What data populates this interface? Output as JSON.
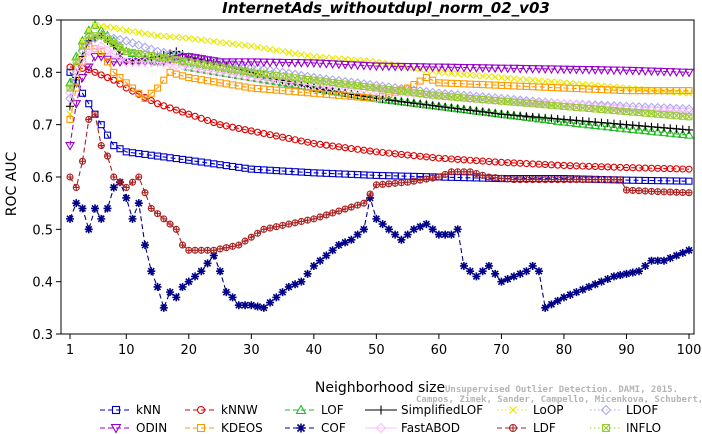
{
  "chart_data": {
    "type": "line",
    "title": "InternetAds_withoutdupl_norm_02_v03",
    "xlabel": "Neighborhood size",
    "ylabel": "ROC AUC",
    "xlim": [
      0,
      100
    ],
    "ylim": [
      0.3,
      0.9
    ],
    "x_ticks": [
      1,
      10,
      20,
      30,
      40,
      50,
      60,
      70,
      80,
      90,
      100
    ],
    "y_ticks": [
      0.3,
      0.4,
      0.5,
      0.6,
      0.7,
      0.8,
      0.9
    ],
    "grid": false,
    "legend_position": "bottom",
    "watermark": [
      "Unsupervised Outlier Detection. DAMI, 2015.",
      "Campos, Zimek, Sander, Campello, Micenkova, Schubert, Assent, Houle"
    ],
    "series": [
      {
        "name": "kNN",
        "color": "#0000cc",
        "marker": "square",
        "dash": "dashed",
        "points": [
          [
            1,
            0.8
          ],
          [
            2,
            0.78
          ],
          [
            3,
            0.76
          ],
          [
            4,
            0.74
          ],
          [
            5,
            0.72
          ],
          [
            6,
            0.7
          ],
          [
            7,
            0.68
          ],
          [
            8,
            0.66
          ],
          [
            10,
            0.648
          ],
          [
            15,
            0.64
          ],
          [
            20,
            0.632
          ],
          [
            30,
            0.615
          ],
          [
            40,
            0.608
          ],
          [
            50,
            0.603
          ],
          [
            60,
            0.6
          ],
          [
            70,
            0.597
          ],
          [
            80,
            0.597
          ],
          [
            90,
            0.594
          ],
          [
            100,
            0.592
          ]
        ]
      },
      {
        "name": "kNNW",
        "color": "#dd0000",
        "marker": "circle",
        "dash": "dashed",
        "points": [
          [
            1,
            0.81
          ],
          [
            2,
            0.81
          ],
          [
            4,
            0.805
          ],
          [
            6,
            0.795
          ],
          [
            8,
            0.785
          ],
          [
            10,
            0.77
          ],
          [
            15,
            0.74
          ],
          [
            20,
            0.72
          ],
          [
            25,
            0.7
          ],
          [
            30,
            0.688
          ],
          [
            40,
            0.664
          ],
          [
            50,
            0.648
          ],
          [
            60,
            0.636
          ],
          [
            70,
            0.628
          ],
          [
            80,
            0.622
          ],
          [
            90,
            0.618
          ],
          [
            100,
            0.615
          ]
        ]
      },
      {
        "name": "LOF",
        "color": "#22bb22",
        "marker": "triangle-up",
        "dash": "dashed",
        "points": [
          [
            1,
            0.78
          ],
          [
            2,
            0.83
          ],
          [
            3,
            0.86
          ],
          [
            4,
            0.88
          ],
          [
            5,
            0.89
          ],
          [
            6,
            0.88
          ],
          [
            8,
            0.86
          ],
          [
            10,
            0.84
          ],
          [
            15,
            0.82
          ],
          [
            18,
            0.83
          ],
          [
            20,
            0.81
          ],
          [
            30,
            0.79
          ],
          [
            40,
            0.77
          ],
          [
            50,
            0.75
          ],
          [
            60,
            0.735
          ],
          [
            70,
            0.72
          ],
          [
            80,
            0.705
          ],
          [
            90,
            0.692
          ],
          [
            100,
            0.68
          ]
        ]
      },
      {
        "name": "SimplifiedLOF",
        "color": "#000000",
        "marker": "plus",
        "dash": "solid",
        "points": [
          [
            1,
            0.735
          ],
          [
            2,
            0.79
          ],
          [
            3,
            0.83
          ],
          [
            4,
            0.86
          ],
          [
            5,
            0.865
          ],
          [
            6,
            0.87
          ],
          [
            7,
            0.86
          ],
          [
            8,
            0.85
          ],
          [
            10,
            0.82
          ],
          [
            15,
            0.83
          ],
          [
            18,
            0.84
          ],
          [
            20,
            0.83
          ],
          [
            30,
            0.8
          ],
          [
            40,
            0.77
          ],
          [
            50,
            0.75
          ],
          [
            60,
            0.735
          ],
          [
            70,
            0.72
          ],
          [
            80,
            0.71
          ],
          [
            90,
            0.7
          ],
          [
            100,
            0.69
          ]
        ]
      },
      {
        "name": "LoOP",
        "color": "#e8e800",
        "marker": "x",
        "dash": "dotted",
        "points": [
          [
            1,
            0.72
          ],
          [
            2,
            0.82
          ],
          [
            3,
            0.86
          ],
          [
            4,
            0.88
          ],
          [
            5,
            0.89
          ],
          [
            8,
            0.885
          ],
          [
            10,
            0.88
          ],
          [
            15,
            0.87
          ],
          [
            20,
            0.865
          ],
          [
            30,
            0.85
          ],
          [
            40,
            0.83
          ],
          [
            50,
            0.82
          ],
          [
            60,
            0.8
          ],
          [
            70,
            0.79
          ],
          [
            80,
            0.78
          ],
          [
            90,
            0.77
          ],
          [
            100,
            0.76
          ]
        ]
      },
      {
        "name": "LDOF",
        "color": "#aaaaee",
        "marker": "diamond",
        "dash": "dotted",
        "points": [
          [
            1,
            0.75
          ],
          [
            2,
            0.8
          ],
          [
            3,
            0.84
          ],
          [
            4,
            0.86
          ],
          [
            6,
            0.87
          ],
          [
            10,
            0.86
          ],
          [
            15,
            0.84
          ],
          [
            20,
            0.83
          ],
          [
            30,
            0.81
          ],
          [
            40,
            0.79
          ],
          [
            50,
            0.775
          ],
          [
            60,
            0.76
          ],
          [
            70,
            0.75
          ],
          [
            80,
            0.74
          ],
          [
            90,
            0.735
          ],
          [
            100,
            0.73
          ]
        ]
      },
      {
        "name": "ODIN",
        "color": "#9900cc",
        "marker": "triangle-down",
        "dash": "dashed",
        "points": [
          [
            1,
            0.66
          ],
          [
            2,
            0.74
          ],
          [
            3,
            0.79
          ],
          [
            4,
            0.81
          ],
          [
            5,
            0.83
          ],
          [
            6,
            0.83
          ],
          [
            8,
            0.82
          ],
          [
            10,
            0.82
          ],
          [
            15,
            0.82
          ],
          [
            20,
            0.83
          ],
          [
            25,
            0.82
          ],
          [
            30,
            0.82
          ],
          [
            40,
            0.818
          ],
          [
            50,
            0.812
          ],
          [
            60,
            0.81
          ],
          [
            70,
            0.808
          ],
          [
            80,
            0.806
          ],
          [
            90,
            0.804
          ],
          [
            100,
            0.8
          ]
        ]
      },
      {
        "name": "KDEOS",
        "color": "#ff9900",
        "marker": "square",
        "dash": "dashed",
        "points": [
          [
            1,
            0.71
          ],
          [
            2,
            0.77
          ],
          [
            3,
            0.82
          ],
          [
            4,
            0.85
          ],
          [
            6,
            0.84
          ],
          [
            8,
            0.8
          ],
          [
            10,
            0.78
          ],
          [
            12,
            0.76
          ],
          [
            13,
            0.75
          ],
          [
            15,
            0.77
          ],
          [
            17,
            0.8
          ],
          [
            20,
            0.79
          ],
          [
            25,
            0.78
          ],
          [
            30,
            0.77
          ],
          [
            40,
            0.76
          ],
          [
            50,
            0.75
          ],
          [
            55,
            0.77
          ],
          [
            58,
            0.79
          ],
          [
            60,
            0.78
          ],
          [
            70,
            0.775
          ],
          [
            80,
            0.77
          ],
          [
            90,
            0.765
          ],
          [
            100,
            0.765
          ]
        ]
      },
      {
        "name": "COF",
        "color": "#000088",
        "marker": "star",
        "dash": "dashed",
        "points": [
          [
            1,
            0.52
          ],
          [
            2,
            0.55
          ],
          [
            3,
            0.54
          ],
          [
            4,
            0.5
          ],
          [
            5,
            0.54
          ],
          [
            6,
            0.52
          ],
          [
            7,
            0.54
          ],
          [
            8,
            0.58
          ],
          [
            9,
            0.59
          ],
          [
            10,
            0.56
          ],
          [
            11,
            0.52
          ],
          [
            12,
            0.55
          ],
          [
            13,
            0.47
          ],
          [
            14,
            0.42
          ],
          [
            15,
            0.39
          ],
          [
            16,
            0.35
          ],
          [
            17,
            0.38
          ],
          [
            18,
            0.37
          ],
          [
            19,
            0.39
          ],
          [
            20,
            0.4
          ],
          [
            22,
            0.42
          ],
          [
            24,
            0.45
          ],
          [
            25,
            0.42
          ],
          [
            26,
            0.38
          ],
          [
            27,
            0.37
          ],
          [
            28,
            0.355
          ],
          [
            30,
            0.355
          ],
          [
            32,
            0.35
          ],
          [
            34,
            0.37
          ],
          [
            36,
            0.39
          ],
          [
            38,
            0.4
          ],
          [
            40,
            0.43
          ],
          [
            42,
            0.45
          ],
          [
            44,
            0.47
          ],
          [
            46,
            0.48
          ],
          [
            48,
            0.5
          ],
          [
            49,
            0.56
          ],
          [
            50,
            0.52
          ],
          [
            52,
            0.5
          ],
          [
            54,
            0.48
          ],
          [
            56,
            0.5
          ],
          [
            58,
            0.51
          ],
          [
            60,
            0.49
          ],
          [
            62,
            0.49
          ],
          [
            63,
            0.5
          ],
          [
            64,
            0.43
          ],
          [
            66,
            0.41
          ],
          [
            68,
            0.43
          ],
          [
            70,
            0.4
          ],
          [
            72,
            0.41
          ],
          [
            74,
            0.42
          ],
          [
            75,
            0.43
          ],
          [
            76,
            0.42
          ],
          [
            77,
            0.35
          ],
          [
            80,
            0.37
          ],
          [
            84,
            0.39
          ],
          [
            88,
            0.41
          ],
          [
            92,
            0.42
          ],
          [
            94,
            0.44
          ],
          [
            96,
            0.44
          ],
          [
            100,
            0.46
          ]
        ]
      },
      {
        "name": "FastABOD",
        "color": "#ffbbff",
        "marker": "diamond",
        "dash": "solid",
        "points": [
          [
            1,
            0.76
          ],
          [
            2,
            0.8
          ],
          [
            3,
            0.82
          ],
          [
            4,
            0.84
          ],
          [
            6,
            0.85
          ],
          [
            10,
            0.82
          ],
          [
            15,
            0.82
          ],
          [
            20,
            0.81
          ],
          [
            30,
            0.79
          ],
          [
            40,
            0.775
          ],
          [
            50,
            0.765
          ],
          [
            60,
            0.755
          ],
          [
            70,
            0.745
          ],
          [
            80,
            0.74
          ],
          [
            90,
            0.73
          ],
          [
            100,
            0.725
          ]
        ]
      },
      {
        "name": "LDF",
        "color": "#aa2222",
        "marker": "circle-plus",
        "dash": "dashed",
        "points": [
          [
            1,
            0.6
          ],
          [
            2,
            0.58
          ],
          [
            3,
            0.63
          ],
          [
            4,
            0.71
          ],
          [
            5,
            0.72
          ],
          [
            6,
            0.66
          ],
          [
            7,
            0.64
          ],
          [
            8,
            0.6
          ],
          [
            10,
            0.58
          ],
          [
            12,
            0.6
          ],
          [
            13,
            0.57
          ],
          [
            14,
            0.54
          ],
          [
            16,
            0.52
          ],
          [
            18,
            0.5
          ],
          [
            19,
            0.47
          ],
          [
            20,
            0.46
          ],
          [
            24,
            0.46
          ],
          [
            28,
            0.47
          ],
          [
            32,
            0.5
          ],
          [
            36,
            0.51
          ],
          [
            40,
            0.52
          ],
          [
            44,
            0.535
          ],
          [
            48,
            0.55
          ],
          [
            50,
            0.585
          ],
          [
            55,
            0.59
          ],
          [
            60,
            0.6
          ],
          [
            62,
            0.61
          ],
          [
            65,
            0.61
          ],
          [
            68,
            0.6
          ],
          [
            72,
            0.595
          ],
          [
            76,
            0.595
          ],
          [
            80,
            0.595
          ],
          [
            85,
            0.595
          ],
          [
            89,
            0.595
          ],
          [
            90,
            0.575
          ],
          [
            95,
            0.572
          ],
          [
            100,
            0.57
          ]
        ]
      },
      {
        "name": "INFLO",
        "color": "#99cc33",
        "marker": "box-x",
        "dash": "dotted",
        "points": [
          [
            1,
            0.77
          ],
          [
            2,
            0.82
          ],
          [
            3,
            0.85
          ],
          [
            4,
            0.87
          ],
          [
            6,
            0.87
          ],
          [
            10,
            0.84
          ],
          [
            15,
            0.83
          ],
          [
            20,
            0.82
          ],
          [
            30,
            0.8
          ],
          [
            40,
            0.785
          ],
          [
            50,
            0.77
          ],
          [
            60,
            0.755
          ],
          [
            70,
            0.745
          ],
          [
            80,
            0.735
          ],
          [
            90,
            0.725
          ],
          [
            100,
            0.715
          ]
        ]
      }
    ]
  },
  "legend_rows": [
    [
      "kNN",
      "kNNW",
      "LOF",
      "SimplifiedLOF",
      "LoOP",
      "LDOF"
    ],
    [
      "ODIN",
      "KDEOS",
      "COF",
      "FastABOD",
      "LDF",
      "INFLO"
    ]
  ]
}
